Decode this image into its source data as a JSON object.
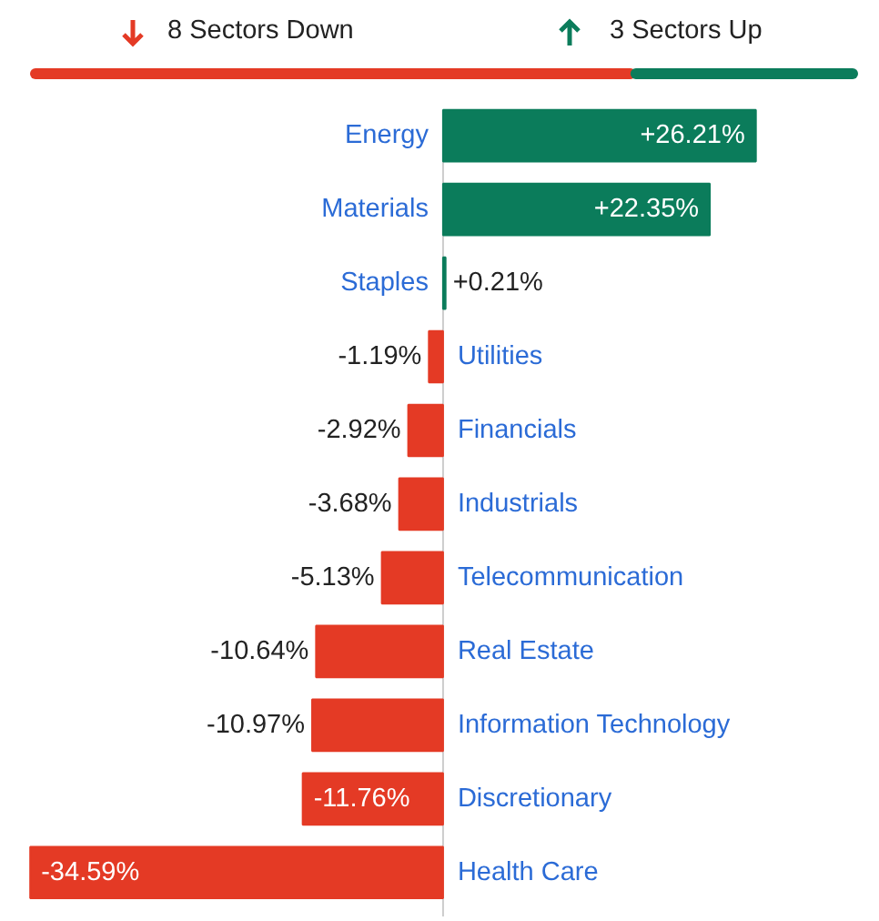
{
  "chart_data": {
    "type": "bar",
    "orientation": "horizontal",
    "annotations": [
      "8 Sectors Down",
      "3 Sectors Up"
    ],
    "categories": [
      "Energy",
      "Materials",
      "Staples",
      "Utilities",
      "Financials",
      "Industrials",
      "Telecommunication",
      "Real Estate",
      "Information Technology",
      "Discretionary",
      "Health Care"
    ],
    "values": [
      26.21,
      22.35,
      0.21,
      -1.19,
      -2.92,
      -3.68,
      -5.13,
      -10.64,
      -10.97,
      -11.76,
      -34.59
    ],
    "colors": [
      "#0b7c5b",
      "#0b7c5b",
      "#0b7c5b",
      "#e43a25",
      "#e43a25",
      "#e43a25",
      "#e43a25",
      "#e43a25",
      "#e43a25",
      "#e43a25",
      "#e43a25"
    ],
    "value_labels": [
      "+26.21%",
      "+22.35%",
      "+0.21%",
      "-1.19%",
      "-2.92%",
      "-3.68%",
      "-5.13%",
      "-10.64%",
      "-10.97%",
      "-11.76%",
      "-34.59%"
    ]
  }
}
